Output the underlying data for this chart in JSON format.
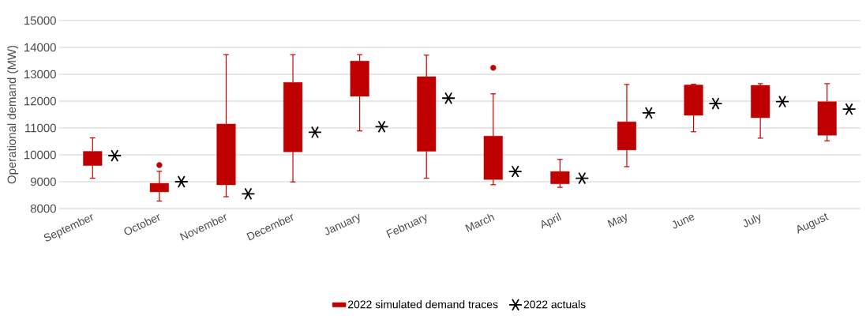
{
  "chart_data": {
    "type": "box",
    "ylabel": "Operational demand (MW)",
    "categories": [
      "September",
      "October",
      "November",
      "December",
      "January",
      "February",
      "March",
      "April",
      "May",
      "June",
      "July",
      "August"
    ],
    "ylim": [
      8000,
      15000
    ],
    "yticks": [
      8000,
      9000,
      10000,
      11000,
      12000,
      13000,
      14000,
      15000
    ],
    "grid": "y",
    "legend": "bottom",
    "series": [
      {
        "name": "2022 simulated demand traces",
        "color": "#c00000",
        "boxes": [
          {
            "low": 9130,
            "q1": 9600,
            "q3": 10130,
            "high": 10630
          },
          {
            "low": 8280,
            "q1": 8620,
            "q3": 8940,
            "high": 9390,
            "outliers": [
              9620
            ]
          },
          {
            "low": 8440,
            "q1": 8880,
            "q3": 11150,
            "high": 13730
          },
          {
            "low": 8990,
            "q1": 10110,
            "q3": 12700,
            "high": 13730
          },
          {
            "low": 10890,
            "q1": 12180,
            "q3": 13490,
            "high": 13730
          },
          {
            "low": 9130,
            "q1": 10130,
            "q3": 12910,
            "high": 13710
          },
          {
            "low": 8890,
            "q1": 9080,
            "q3": 10700,
            "high": 12270,
            "outliers": [
              13240
            ]
          },
          {
            "low": 8790,
            "q1": 8920,
            "q3": 9380,
            "high": 9830
          },
          {
            "low": 9560,
            "q1": 10180,
            "q3": 11230,
            "high": 12620
          },
          {
            "low": 10860,
            "q1": 11470,
            "q3": 12600,
            "high": 12630
          },
          {
            "low": 10620,
            "q1": 11380,
            "q3": 12590,
            "high": 12650
          },
          {
            "low": 10520,
            "q1": 10730,
            "q3": 11980,
            "high": 12650
          }
        ]
      },
      {
        "name": "2022 actuals",
        "type": "scatter",
        "color": "#000000",
        "marker": "cross",
        "values": [
          9970,
          9000,
          8550,
          10840,
          11050,
          12110,
          9380,
          9130,
          11560,
          11910,
          11980,
          11700
        ]
      }
    ]
  }
}
